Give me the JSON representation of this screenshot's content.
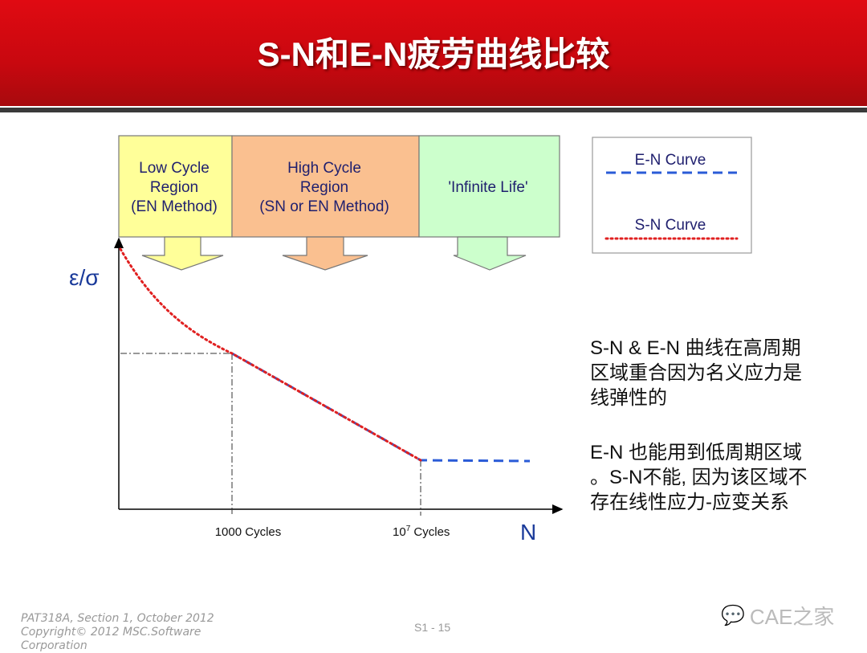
{
  "title": "S-N和E-N疲劳曲线比较",
  "diagram": {
    "regions": [
      {
        "lines": [
          "Low Cycle",
          "Region",
          "(EN Method)"
        ],
        "color": "#FFFF99"
      },
      {
        "lines": [
          "High Cycle",
          "Region",
          "(SN or EN Method)"
        ],
        "color": "#FAC090"
      },
      {
        "lines": [
          "'Infinite Life'"
        ],
        "color": "#CCFFCC"
      }
    ],
    "y_axis_label": "ε/σ",
    "x_axis_label": "N",
    "x_ticks": {
      "first": "1000 Cycles",
      "second_base": "10",
      "second_exp": "7",
      "second_suffix": " Cycles"
    },
    "legend": {
      "en": "E-N Curve",
      "sn": "S-N Curve"
    },
    "colors": {
      "en": "#2a5bd7",
      "sn": "#e02020",
      "axis_label": "#1a3a9a"
    }
  },
  "notes": {
    "p1": [
      "S-N & E-N 曲线在高周期",
      "区域重合因为名义应力是",
      "线弹性的"
    ],
    "p2": [
      "E-N 也能用到低周期区域",
      "。S-N不能, 因为该区域不",
      "存在线性应力-应变关系"
    ]
  },
  "footer": {
    "course": "PAT318A, Section 1, October 2012",
    "copyright": "Copyright© 2012 MSC.Software",
    "copyright2": "Corporation",
    "page": "S1 - 15",
    "watermark": "CAE之家"
  }
}
